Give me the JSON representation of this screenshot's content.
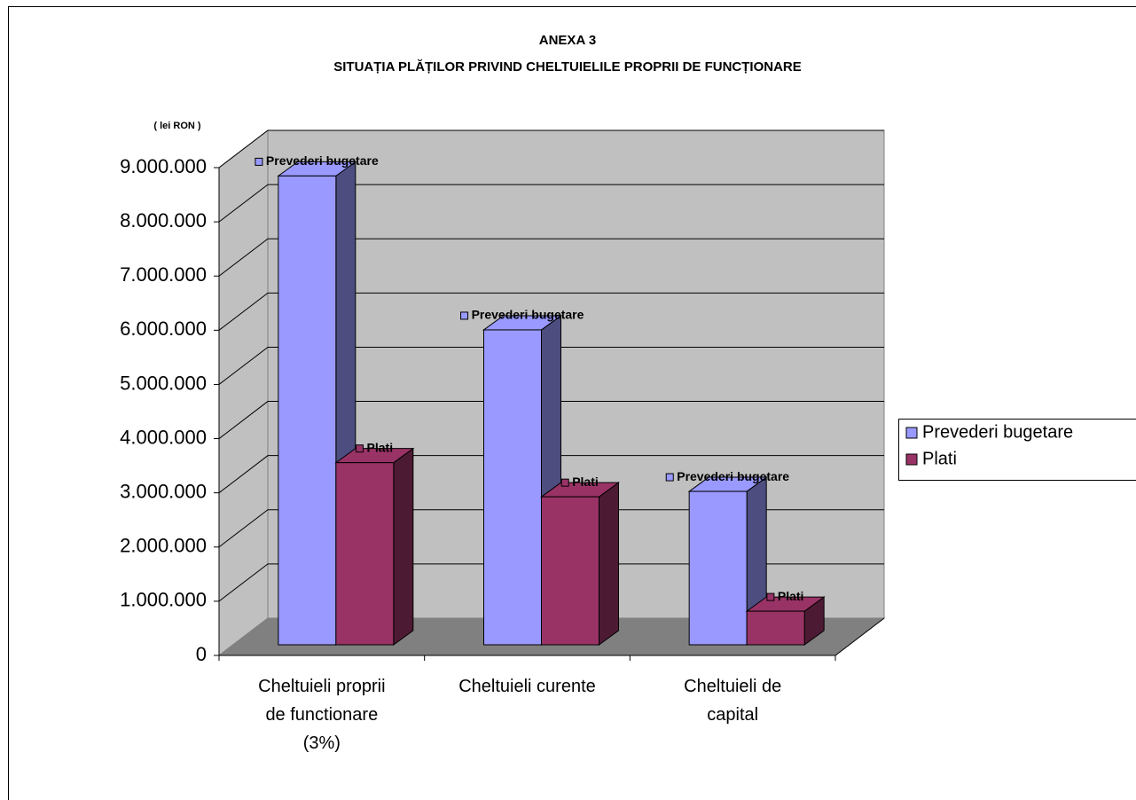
{
  "chart_data": {
    "type": "bar3d",
    "title": "ANEXA 3",
    "subtitle": "SITUAȚIA PLĂȚILOR PRIVIND CHELTUIELILE PROPRII DE FUNCȚIONARE",
    "y_label": "( lei RON )",
    "categories": [
      "Cheltuieli proprii de functionare (3%)",
      "Cheltuieli curente",
      "Cheltuieli de capital"
    ],
    "series": [
      {
        "name": "Prevederi bugetare",
        "color": "#9999ff",
        "values": [
          8650000,
          5810000,
          2830000
        ]
      },
      {
        "name": "Plati",
        "color": "#993366",
        "values": [
          3360000,
          2730000,
          620000
        ]
      }
    ],
    "ylim": [
      0,
      9000000
    ],
    "yticks": [
      0,
      {
        "value": 1000000,
        "label": "1.000.000"
      },
      {
        "value": 2000000,
        "label": "2.000.000"
      },
      {
        "value": 3000000,
        "label": "3.000.000"
      },
      {
        "value": 4000000,
        "label": "4.000.000"
      },
      {
        "value": 5000000,
        "label": "5.000.000"
      },
      {
        "value": 6000000,
        "label": "6.000.000"
      },
      {
        "value": 7000000,
        "label": "7.000.000"
      },
      {
        "value": 8000000,
        "label": "8.000.000"
      },
      {
        "value": 9000000,
        "label": "9.000.000"
      }
    ],
    "grid": true,
    "legend": "right"
  }
}
